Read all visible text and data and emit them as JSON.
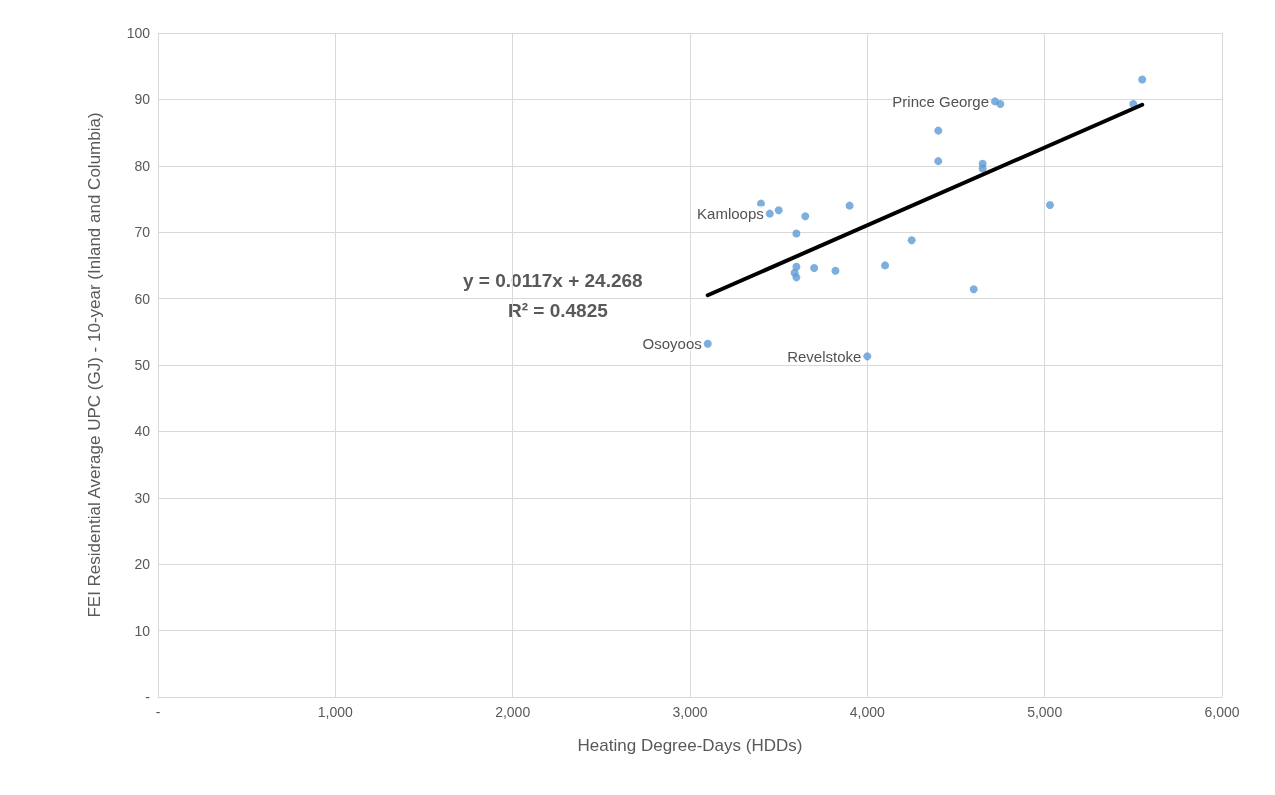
{
  "chart_data": {
    "type": "scatter",
    "xlabel": "Heating Degree-Days (HDDs)",
    "ylabel": "FEI Residential Average UPC (GJ) - 10-year (Inland and Columbia)",
    "marker": "circle",
    "grid": true,
    "xlim": [
      0,
      6000
    ],
    "xticks": [
      {
        "value": 0,
        "label": "-"
      },
      {
        "value": 1000,
        "label": "1,000"
      },
      {
        "value": 2000,
        "label": "2,000"
      },
      {
        "value": 3000,
        "label": "3,000"
      },
      {
        "value": 4000,
        "label": "4,000"
      },
      {
        "value": 5000,
        "label": "5,000"
      },
      {
        "value": 6000,
        "label": "6,000"
      }
    ],
    "ylim": [
      0,
      100
    ],
    "yticks": [
      {
        "value": 0,
        "label": "-"
      },
      10,
      20,
      30,
      40,
      50,
      60,
      70,
      80,
      90,
      100
    ],
    "series": [
      {
        "color": "#5b9bd5",
        "x": [
          3100,
          4000,
          3400,
          3450,
          3500,
          3650,
          3600,
          3900,
          3600,
          3590,
          3600,
          3700,
          3820,
          4100,
          4250,
          4400,
          4400,
          4650,
          4650,
          4600,
          5030,
          4720,
          4750,
          5500,
          5550
        ],
        "values": [
          53.2,
          51.3,
          74.3,
          72.8,
          73.3,
          72.4,
          69.8,
          74.0,
          64.8,
          63.9,
          63.2,
          64.6,
          64.2,
          65.0,
          68.8,
          85.3,
          80.7,
          80.3,
          79.6,
          61.4,
          74.1,
          89.7,
          89.3,
          89.3,
          93.0
        ]
      },
      {
        "type": "line",
        "marker": "none",
        "color": "#000000",
        "x": [
          3100,
          5550
        ],
        "values": [
          60.5,
          89.2
        ]
      }
    ],
    "annotations": [
      {
        "text": "Osoyoos",
        "x": 3100,
        "y": 53.2
      },
      {
        "text": "Revelstoke",
        "x": 4000,
        "y": 51.3
      },
      {
        "text": "Kamloops",
        "x": 3450,
        "y": 72.8
      },
      {
        "text": "Prince George",
        "x": 4720,
        "y": 89.7
      },
      "y = 0.0117x + 24.268",
      "R² = 0.4825"
    ]
  }
}
